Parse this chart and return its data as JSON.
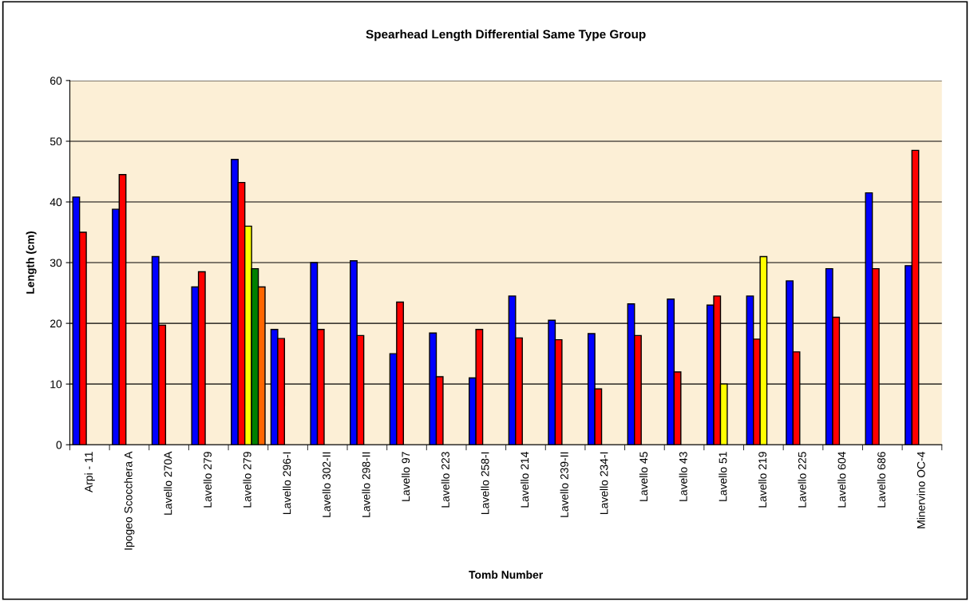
{
  "chart_data": {
    "type": "bar",
    "title": "Spearhead Length Differential Same Type Group",
    "xlabel": "Tomb Number",
    "ylabel": "Length (cm)",
    "categories": [
      "Arpi - 11",
      "Ipogeo Scocchera A",
      "Lavello 270A",
      "Lavello 279",
      "Lavello 279",
      "Lavello 296-I",
      "Lavello 302-II",
      "Lavello 298-II",
      "Lavello 97",
      "Lavello 223",
      "Lavello 258-I",
      "Lavello 214",
      "Lavello 239-II",
      "Lavello 234-I",
      "Lavello 45",
      "Lavello 43",
      "Lavello 51",
      "Lavello 219",
      "Lavello 225",
      "Lavello 604",
      "Lavello 686",
      "Minervino OC-4"
    ],
    "series": [
      {
        "color": "#0000ff",
        "values": [
          40.8,
          38.8,
          31,
          26,
          47,
          19,
          30,
          30.3,
          15,
          18.4,
          11,
          24.5,
          20.5,
          18.3,
          23.2,
          24,
          23,
          24.5,
          27,
          29,
          41.5,
          29.5
        ]
      },
      {
        "color": "#ff0000",
        "values": [
          35,
          44.5,
          19.7,
          28.5,
          43.2,
          17.5,
          19,
          18,
          23.5,
          11.2,
          19,
          17.6,
          17.3,
          9.2,
          18,
          12,
          24.5,
          17.4,
          15.3,
          21,
          29,
          48.5
        ]
      },
      {
        "color": "#ffff00",
        "values": [
          null,
          null,
          null,
          null,
          36,
          null,
          null,
          null,
          null,
          null,
          null,
          null,
          null,
          null,
          null,
          null,
          10,
          31,
          null,
          null,
          null,
          null
        ]
      },
      {
        "color": "#008000",
        "values": [
          null,
          null,
          null,
          null,
          29,
          null,
          null,
          null,
          null,
          null,
          null,
          null,
          null,
          null,
          null,
          null,
          null,
          null,
          null,
          null,
          null,
          null
        ]
      },
      {
        "color": "#ff6600",
        "values": [
          null,
          null,
          null,
          null,
          26,
          null,
          null,
          null,
          null,
          null,
          null,
          null,
          null,
          null,
          null,
          null,
          null,
          null,
          null,
          null,
          null,
          null
        ]
      }
    ],
    "ylim": [
      0,
      60
    ],
    "yticks": [
      0,
      10,
      20,
      30,
      40,
      50,
      60
    ],
    "grid": "y"
  }
}
